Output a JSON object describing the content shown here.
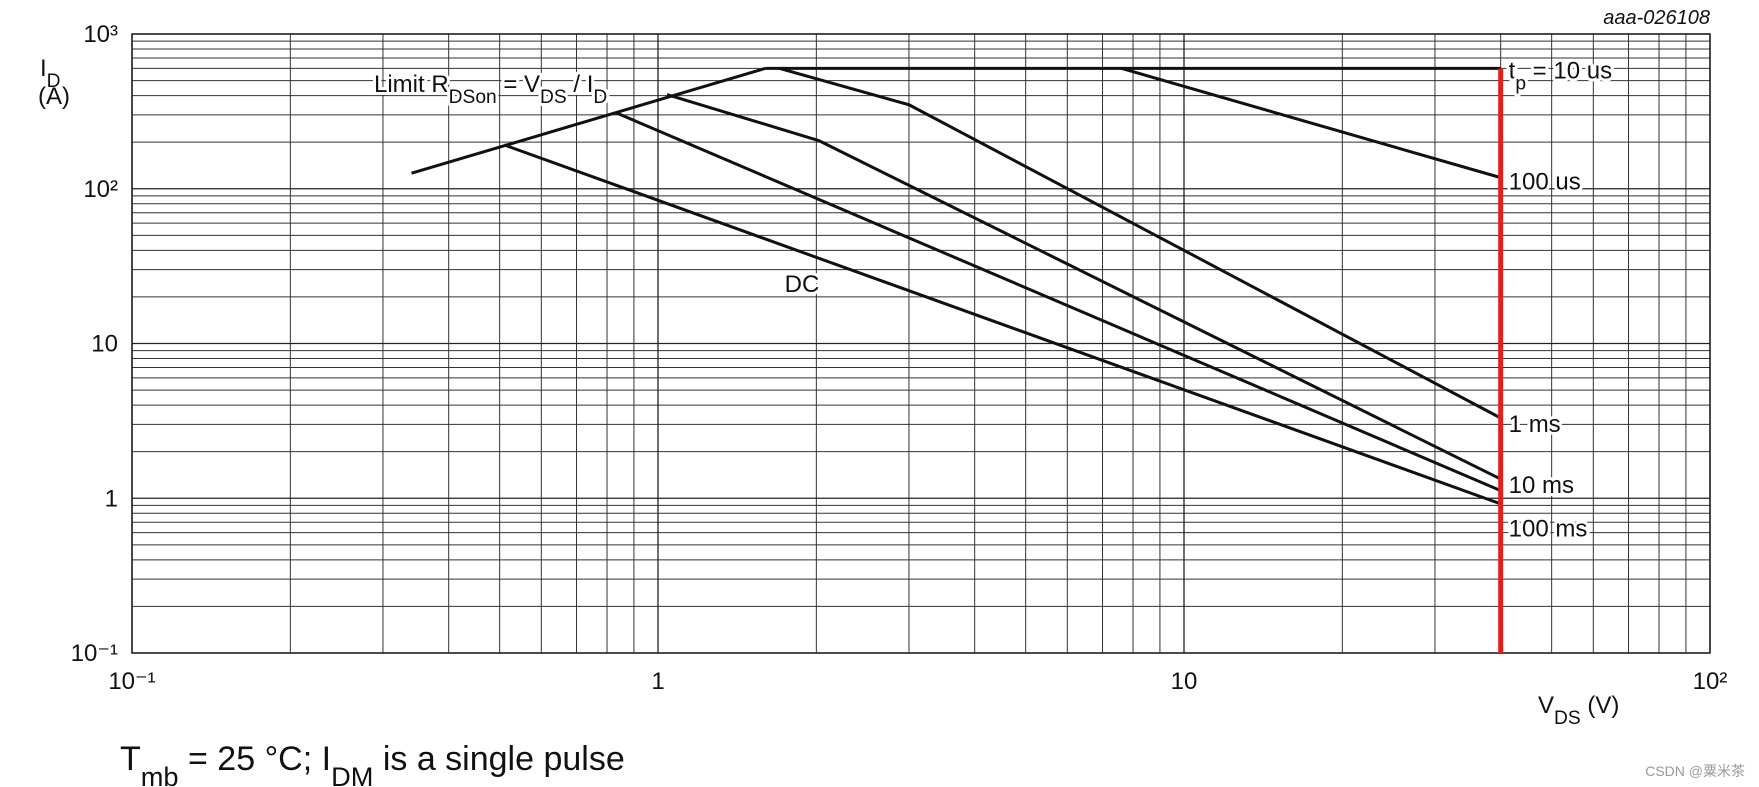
{
  "chart_data": {
    "type": "line",
    "figure_code": "aaa-026108",
    "caption": [
      "T",
      "mb",
      " = 25 °C; I",
      "DM",
      " is a single pulse"
    ],
    "ylabel": [
      "I",
      "D",
      "(A)"
    ],
    "xlabel": [
      "V",
      "DS",
      " (V)"
    ],
    "watermark": "CSDN @粟米茶",
    "log_x": true,
    "log_y": true,
    "grid": true,
    "minor_grid": true,
    "xlim": [
      0.1,
      100
    ],
    "ylim": [
      0.1,
      1000
    ],
    "xticks": [
      {
        "value": 0.1,
        "label": "10⁻¹"
      },
      1,
      10,
      {
        "value": 100,
        "label": "10²"
      }
    ],
    "yticks": [
      {
        "value": 0.1,
        "label": "10⁻¹"
      },
      1,
      10,
      {
        "value": 100,
        "label": "10²"
      },
      {
        "value": 1000,
        "label": "10³"
      }
    ],
    "limit_line": {
      "name": [
        "Limit R",
        "DSon",
        " = V",
        "DS",
        " / I",
        "D"
      ],
      "color": "#111111",
      "x": [
        0.34,
        1.6
      ],
      "values": [
        126,
        600
      ]
    },
    "vline": {
      "x": 40,
      "values": [
        0.1,
        600
      ],
      "color": "#e0201c"
    },
    "series": [
      {
        "name": [
          "t",
          "p",
          " = 10 us"
        ],
        "color": "#111111",
        "x": [
          1.6,
          40
        ],
        "values": [
          600,
          600
        ]
      },
      {
        "name": "100 us",
        "color": "#111111",
        "x": [
          7.6,
          40
        ],
        "values": [
          600,
          118
        ]
      },
      {
        "name": "1 ms",
        "color": "#111111",
        "x": [
          1.7,
          3,
          40
        ],
        "values": [
          600,
          349,
          3.3
        ]
      },
      {
        "name": "10 ms",
        "color": "#111111",
        "x": [
          1.04,
          2.02,
          40
        ],
        "values": [
          406,
          205,
          1.33
        ]
      },
      {
        "name": "100 ms",
        "color": "#111111",
        "x": [
          0.83,
          40
        ],
        "values": [
          311,
          1.12
        ]
      },
      {
        "name": "DC",
        "color": "#111111",
        "x": [
          0.51,
          40
        ],
        "values": [
          192,
          0.92
        ]
      }
    ]
  }
}
